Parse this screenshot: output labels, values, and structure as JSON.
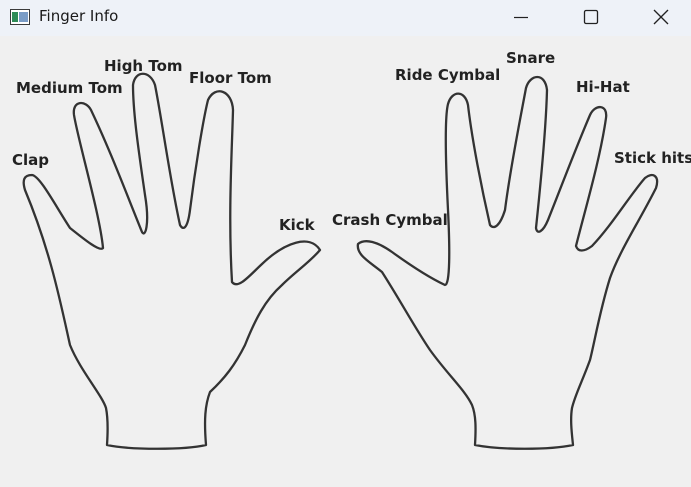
{
  "window": {
    "title": "Finger Info",
    "icon": "app-window-icon",
    "controls": [
      "minimize-icon",
      "maximize-icon",
      "close-icon"
    ]
  },
  "left_hand": {
    "clap": "Clap",
    "medium_tom": "Medium Tom",
    "high_tom": "High Tom",
    "floor_tom": "Floor Tom",
    "kick": "Kick"
  },
  "right_hand": {
    "crash_cymbal": "Crash Cymbal",
    "ride_cymbal": "Ride Cymbal",
    "snare": "Snare",
    "hi_hat": "Hi-Hat",
    "stick_hits": "Stick hits"
  }
}
